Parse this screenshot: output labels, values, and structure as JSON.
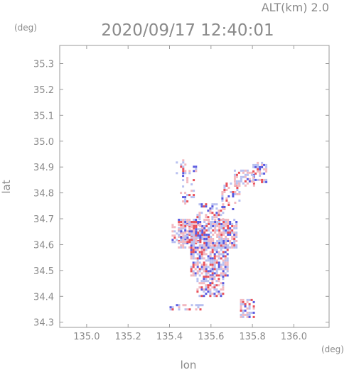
{
  "header": {
    "altitude_label": "ALT(km)  2.0",
    "timestamp": "2020/09/17 12:40:01",
    "y_unit": "(deg)",
    "x_unit": "(deg)"
  },
  "chart_data": {
    "type": "heatmap",
    "title": "2020/09/17 12:40:01",
    "subtitle": "ALT(km)  2.0",
    "xlabel": "lon",
    "ylabel": "lat",
    "xunit": "(deg)",
    "yunit": "(deg)",
    "xlim": [
      134.87,
      136.17
    ],
    "ylim": [
      34.28,
      35.37
    ],
    "xticks": [
      135.0,
      135.2,
      135.4,
      135.6,
      135.8,
      136.0
    ],
    "xtick_labels": [
      "135.0",
      "135.2",
      "135.4",
      "135.6",
      "135.8",
      "136.0"
    ],
    "yticks": [
      34.3,
      34.4,
      34.5,
      34.6,
      34.7,
      34.8,
      34.9,
      35.0,
      35.1,
      35.2,
      35.3
    ],
    "ytick_labels": [
      "34.3",
      "34.4",
      "34.5",
      "34.6",
      "34.7",
      "34.8",
      "34.9",
      "35.0",
      "35.1",
      "35.2",
      "35.3"
    ],
    "grid": false,
    "colors": {
      "frame": "#9a9a9a",
      "text": "#8a8a8a",
      "positive": "#e8505a",
      "negative": "#5a5ae0",
      "weak_positive": "#f2b8c0",
      "weak_negative": "#b8c0f0"
    },
    "echo_regions": [
      {
        "lon": [
          135.44,
          135.72
        ],
        "lat": [
          34.59,
          34.7
        ],
        "density": 0.75
      },
      {
        "lon": [
          135.5,
          135.68
        ],
        "lat": [
          34.48,
          34.6
        ],
        "density": 0.7
      },
      {
        "lon": [
          135.53,
          135.66
        ],
        "lat": [
          34.4,
          34.48
        ],
        "density": 0.55
      },
      {
        "lon": [
          135.41,
          135.55
        ],
        "lat": [
          34.61,
          34.68
        ],
        "density": 0.6
      },
      {
        "lon": [
          135.53,
          135.66
        ],
        "lat": [
          34.7,
          34.76
        ],
        "density": 0.4
      },
      {
        "lon": [
          135.65,
          135.74
        ],
        "lat": [
          34.74,
          34.84
        ],
        "density": 0.4
      },
      {
        "lon": [
          135.71,
          135.81
        ],
        "lat": [
          34.83,
          34.89
        ],
        "density": 0.45
      },
      {
        "lon": [
          135.8,
          135.87
        ],
        "lat": [
          34.84,
          34.92
        ],
        "density": 0.5
      },
      {
        "lon": [
          135.43,
          135.53
        ],
        "lat": [
          34.88,
          34.93
        ],
        "density": 0.3
      },
      {
        "lon": [
          135.45,
          135.52
        ],
        "lat": [
          34.75,
          34.87
        ],
        "density": 0.2
      },
      {
        "lon": [
          135.74,
          135.81
        ],
        "lat": [
          34.32,
          34.39
        ],
        "density": 0.6
      },
      {
        "lon": [
          135.4,
          135.56
        ],
        "lat": [
          34.35,
          34.37
        ],
        "density": 0.5
      }
    ]
  }
}
